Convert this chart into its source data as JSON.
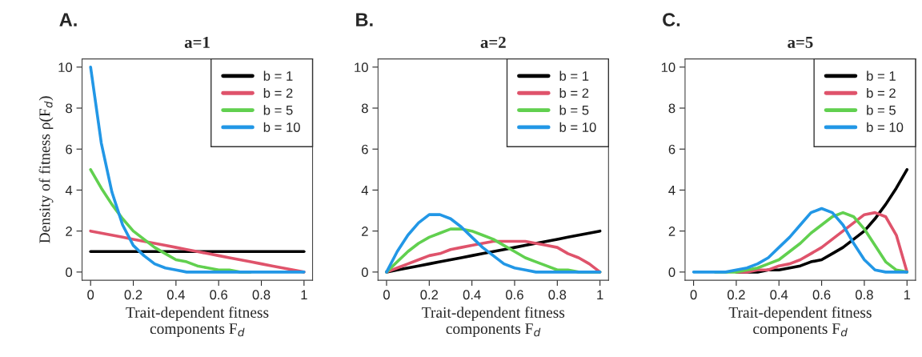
{
  "chart_data": [
    {
      "type": "line",
      "title": "a=1",
      "annotations": [
        "A."
      ],
      "ylabel": "Density of fitness ρ(F$_{d}$)",
      "xlabel": "Trait-dependent fitness\ncomponents F$_{d}$",
      "xlim": [
        -0.04,
        1.04
      ],
      "ylim": [
        -0.4,
        10.4
      ],
      "xticks": [
        0,
        0.2,
        0.4,
        0.6,
        0.8,
        1
      ],
      "yticks": [
        0,
        2,
        4,
        6,
        8,
        10
      ],
      "grid": false,
      "legend": "top right",
      "line_style": "solid",
      "x": [
        0,
        0.05,
        0.1,
        0.15,
        0.2,
        0.25,
        0.3,
        0.35,
        0.4,
        0.45,
        0.5,
        0.55,
        0.6,
        0.65,
        0.7,
        0.75,
        0.8,
        0.85,
        0.9,
        0.95,
        1
      ],
      "series": [
        {
          "name": "b = 1",
          "color": "#000000",
          "values": [
            1,
            1,
            1,
            1,
            1,
            1,
            1,
            1,
            1,
            1,
            1,
            1,
            1,
            1,
            1,
            1,
            1,
            1,
            1,
            1,
            1
          ]
        },
        {
          "name": "b = 2",
          "color": "#df536b",
          "values": [
            2,
            1.9,
            1.8,
            1.7,
            1.6,
            1.5,
            1.4,
            1.3,
            1.2,
            1.1,
            1.0,
            0.9,
            0.8,
            0.7,
            0.6,
            0.5,
            0.4,
            0.3,
            0.2,
            0.1,
            0
          ]
        },
        {
          "name": "b = 5",
          "color": "#61d04f",
          "values": [
            5,
            4.1,
            3.3,
            2.6,
            2.0,
            1.6,
            1.2,
            0.9,
            0.6,
            0.5,
            0.3,
            0.2,
            0.1,
            0.1,
            0,
            0,
            null,
            null,
            null,
            null,
            null
          ]
        },
        {
          "name": "b = 10",
          "color": "#2297e6",
          "values": [
            10,
            6.3,
            3.9,
            2.3,
            1.3,
            0.8,
            0.4,
            0.2,
            0.1,
            0,
            0,
            0,
            0,
            0,
            0,
            0,
            0,
            0,
            0,
            0,
            0
          ]
        }
      ]
    },
    {
      "type": "line",
      "title": "a=2",
      "annotations": [
        "B."
      ],
      "xlabel": "Trait-dependent fitness\ncomponents F$_{d}$",
      "xlim": [
        -0.04,
        1.04
      ],
      "ylim": [
        -0.4,
        10.4
      ],
      "xticks": [
        0,
        0.2,
        0.4,
        0.6,
        0.8,
        1
      ],
      "yticks": [
        0,
        2,
        4,
        6,
        8,
        10
      ],
      "grid": false,
      "legend": "top right",
      "line_style": "solid",
      "x": [
        0,
        0.05,
        0.1,
        0.15,
        0.2,
        0.25,
        0.3,
        0.35,
        0.4,
        0.45,
        0.5,
        0.55,
        0.6,
        0.65,
        0.7,
        0.75,
        0.8,
        0.85,
        0.9,
        0.95,
        1
      ],
      "series": [
        {
          "name": "b = 1",
          "color": "#000000",
          "values": [
            0,
            0.1,
            0.2,
            0.3,
            0.4,
            0.5,
            0.6,
            0.7,
            0.8,
            0.9,
            1.0,
            1.1,
            1.2,
            1.3,
            1.4,
            1.5,
            1.6,
            1.7,
            1.8,
            1.9,
            2
          ]
        },
        {
          "name": "b = 2",
          "color": "#df536b",
          "values": [
            0,
            0.2,
            0.4,
            0.6,
            0.8,
            0.9,
            1.1,
            1.2,
            1.3,
            1.4,
            1.5,
            1.5,
            1.5,
            1.5,
            1.4,
            1.3,
            1.2,
            0.9,
            0.7,
            0.4,
            0
          ]
        },
        {
          "name": "b = 5",
          "color": "#61d04f",
          "values": [
            0,
            0.5,
            1.0,
            1.4,
            1.7,
            1.9,
            2.1,
            2.1,
            2.0,
            1.8,
            1.6,
            1.3,
            1.0,
            0.7,
            0.5,
            0.3,
            0.1,
            0.1,
            0,
            0,
            0
          ]
        },
        {
          "name": "b = 10",
          "color": "#2297e6",
          "values": [
            0,
            1.0,
            1.8,
            2.4,
            2.8,
            2.8,
            2.6,
            2.2,
            1.7,
            1.2,
            0.8,
            0.4,
            0.2,
            0.1,
            0,
            0,
            0,
            0,
            0,
            0,
            0
          ]
        }
      ]
    },
    {
      "type": "line",
      "title": "a=5",
      "annotations": [
        "C."
      ],
      "xlabel": "Trait-dependent fitness\ncomponents F$_{d}$",
      "xlim": [
        -0.04,
        1.04
      ],
      "ylim": [
        -0.4,
        10.4
      ],
      "xticks": [
        0,
        0.2,
        0.4,
        0.6,
        0.8,
        1
      ],
      "yticks": [
        0,
        2,
        4,
        6,
        8,
        10
      ],
      "grid": false,
      "legend": "top right",
      "line_style": "solid",
      "x": [
        0,
        0.05,
        0.1,
        0.15,
        0.2,
        0.25,
        0.3,
        0.35,
        0.4,
        0.45,
        0.5,
        0.55,
        0.6,
        0.65,
        0.7,
        0.75,
        0.8,
        0.85,
        0.9,
        0.95,
        1
      ],
      "series": [
        {
          "name": "b = 1",
          "color": "#000000",
          "values": [
            null,
            null,
            null,
            null,
            0,
            0,
            0,
            0.1,
            0.1,
            0.2,
            0.3,
            0.5,
            0.6,
            0.9,
            1.2,
            1.6,
            2.0,
            2.6,
            3.3,
            4.1,
            5
          ]
        },
        {
          "name": "b = 2",
          "color": "#df536b",
          "values": [
            null,
            null,
            null,
            null,
            0,
            0,
            0.1,
            0.1,
            0.3,
            0.4,
            0.6,
            0.9,
            1.2,
            1.6,
            2.0,
            2.4,
            2.8,
            2.9,
            2.7,
            1.8,
            0
          ]
        },
        {
          "name": "b = 5",
          "color": "#61d04f",
          "values": [
            null,
            null,
            0,
            0,
            0,
            0.1,
            0.2,
            0.4,
            0.6,
            1.0,
            1.4,
            1.9,
            2.3,
            2.7,
            2.9,
            2.7,
            2.1,
            1.3,
            0.5,
            0.1,
            0
          ]
        },
        {
          "name": "b = 10",
          "color": "#2297e6",
          "values": [
            0,
            0,
            0,
            0,
            0.1,
            0.2,
            0.4,
            0.7,
            1.2,
            1.7,
            2.3,
            2.9,
            3.1,
            2.9,
            2.3,
            1.4,
            0.6,
            0.1,
            0,
            0,
            0
          ]
        }
      ]
    }
  ]
}
